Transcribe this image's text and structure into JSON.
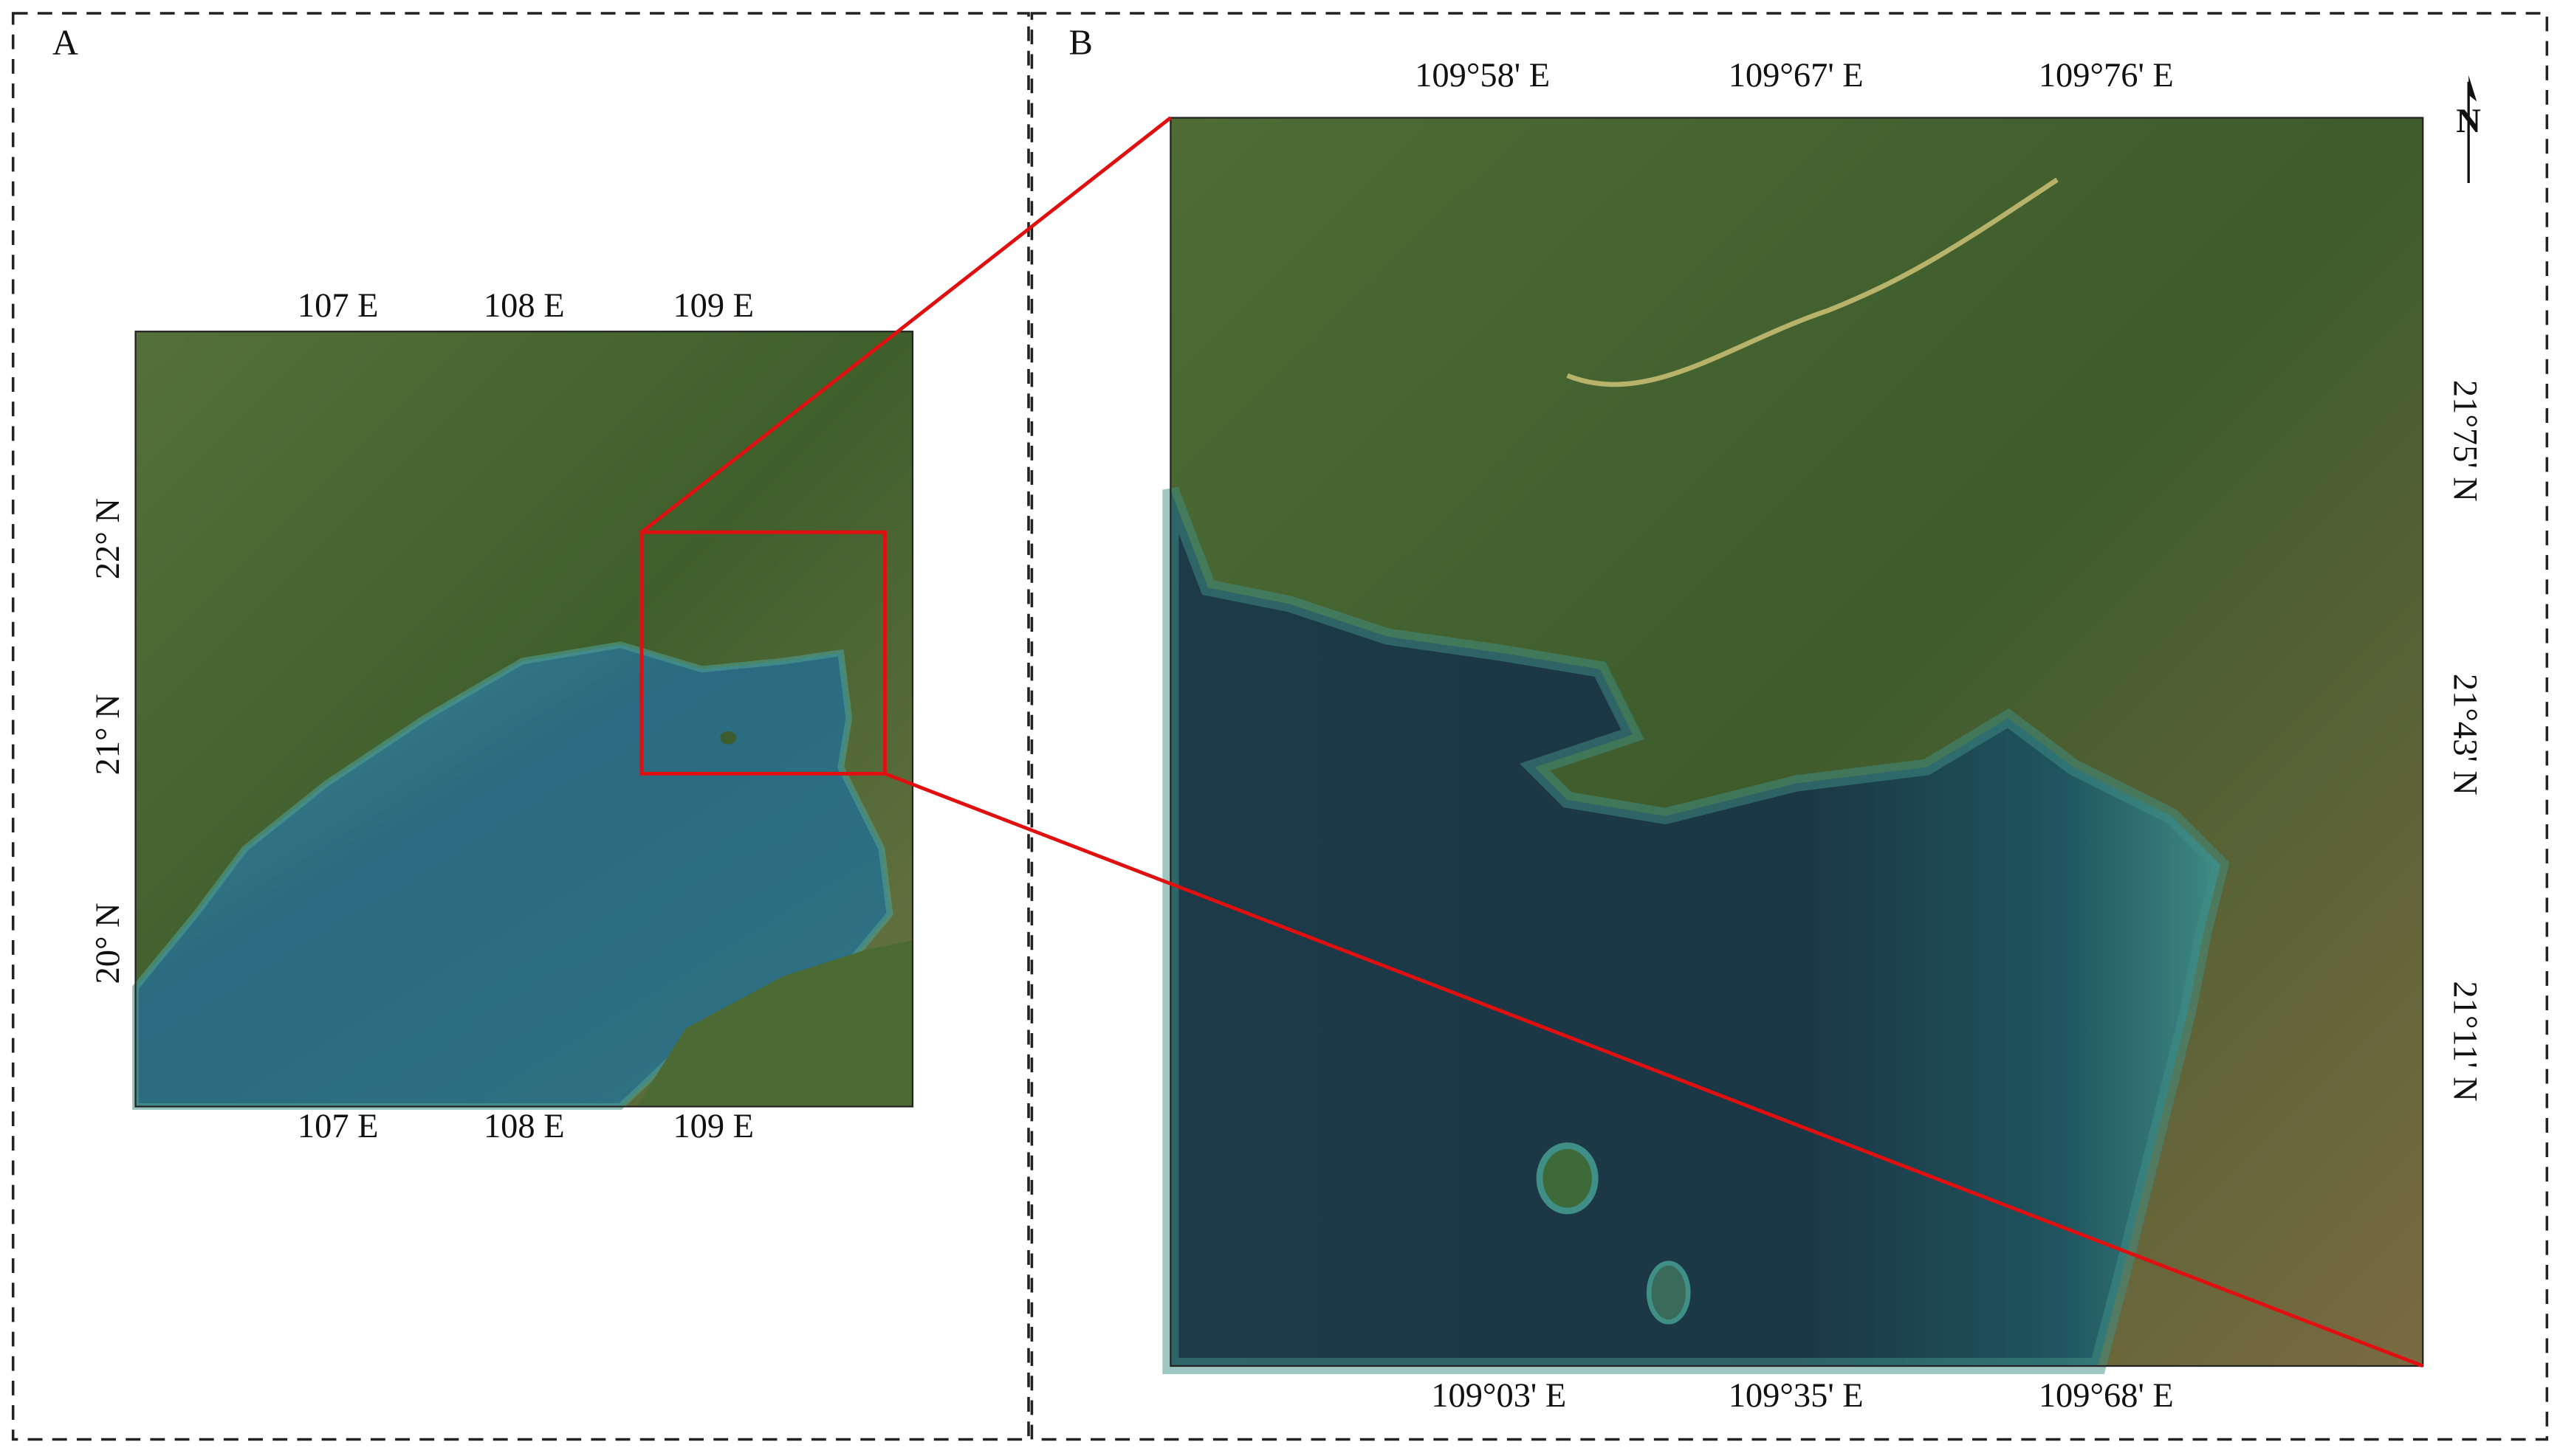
{
  "panels": [
    {
      "label": "A",
      "top_ticks": [
        "107 E",
        "108 E",
        "109 E"
      ],
      "bottom_ticks": [
        "107 E",
        "108 E",
        "109 E"
      ],
      "left_ticks": [
        "22° N",
        "21° N",
        "20° N"
      ]
    },
    {
      "label": "B",
      "top_ticks": [
        "109°58' E",
        "109°67' E",
        "109°76' E"
      ],
      "bottom_ticks": [
        "109°03' E",
        "109°35' E",
        "109°68' E"
      ],
      "right_ticks": [
        "21°75' N",
        "21°43' N",
        "21°11' N"
      ]
    }
  ],
  "north_arrow": "N"
}
